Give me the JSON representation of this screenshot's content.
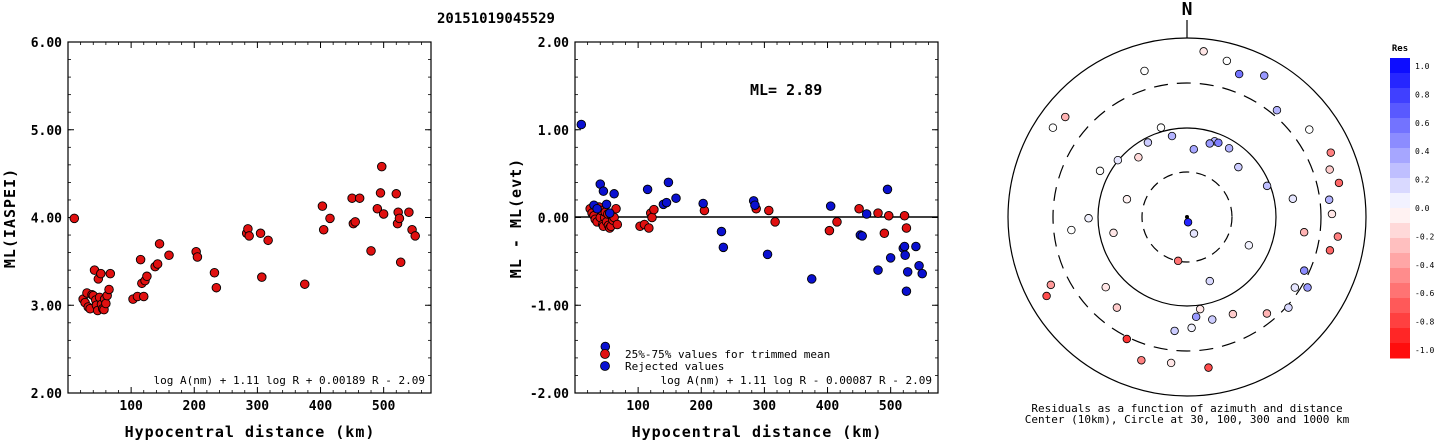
{
  "title": "20151019045529",
  "colors": {
    "accepted": "#e01010",
    "rejected": "#0a10d0",
    "ink": "#000000"
  },
  "chart_data": [
    {
      "type": "scatter",
      "xlabel": "Hypocentral distance (km)",
      "ylabel": "ML(IASPEI)",
      "xlim": [
        0,
        575
      ],
      "ylim": [
        2.0,
        6.0
      ],
      "xticks": [
        "100",
        "200",
        "300",
        "400",
        "500"
      ],
      "yticks": [
        "2.00",
        "3.00",
        "4.00",
        "5.00",
        "6.00"
      ],
      "formula": "log A(nm) + 1.11 log R + 0.00189 R - 2.09",
      "points": [
        [
          10,
          3.99
        ],
        [
          24,
          3.07
        ],
        [
          27,
          3.03
        ],
        [
          30,
          3.14
        ],
        [
          32,
          2.98
        ],
        [
          35,
          2.96
        ],
        [
          38,
          3.12
        ],
        [
          40,
          3.11
        ],
        [
          42,
          3.4
        ],
        [
          44,
          3.06
        ],
        [
          45,
          3.0
        ],
        [
          47,
          2.94
        ],
        [
          48,
          3.3
        ],
        [
          50,
          3.09
        ],
        [
          52,
          3.36
        ],
        [
          53,
          3.01
        ],
        [
          55,
          2.96
        ],
        [
          57,
          2.95
        ],
        [
          58,
          3.07
        ],
        [
          60,
          3.02
        ],
        [
          62,
          3.11
        ],
        [
          65,
          3.18
        ],
        [
          67,
          3.36
        ],
        [
          103,
          3.07
        ],
        [
          110,
          3.1
        ],
        [
          115,
          3.52
        ],
        [
          117,
          3.25
        ],
        [
          120,
          3.1
        ],
        [
          122,
          3.28
        ],
        [
          125,
          3.33
        ],
        [
          138,
          3.44
        ],
        [
          142,
          3.47
        ],
        [
          145,
          3.7
        ],
        [
          160,
          3.57
        ],
        [
          203,
          3.61
        ],
        [
          205,
          3.55
        ],
        [
          232,
          3.37
        ],
        [
          235,
          3.2
        ],
        [
          283,
          3.82
        ],
        [
          285,
          3.87
        ],
        [
          287,
          3.79
        ],
        [
          305,
          3.82
        ],
        [
          307,
          3.32
        ],
        [
          317,
          3.74
        ],
        [
          375,
          3.24
        ],
        [
          403,
          4.13
        ],
        [
          405,
          3.86
        ],
        [
          415,
          3.99
        ],
        [
          450,
          4.22
        ],
        [
          452,
          3.93
        ],
        [
          455,
          3.95
        ],
        [
          462,
          4.22
        ],
        [
          480,
          3.62
        ],
        [
          490,
          4.1
        ],
        [
          495,
          4.28
        ],
        [
          497,
          4.58
        ],
        [
          500,
          4.04
        ],
        [
          520,
          4.27
        ],
        [
          522,
          3.93
        ],
        [
          523,
          4.06
        ],
        [
          525,
          3.99
        ],
        [
          527,
          3.49
        ],
        [
          540,
          4.06
        ],
        [
          545,
          3.86
        ],
        [
          550,
          3.79
        ]
      ]
    },
    {
      "type": "scatter",
      "xlabel": "Hypocentral distance (km)",
      "ylabel": "ML - ML(evt)",
      "xlim": [
        0,
        575
      ],
      "ylim": [
        -2.0,
        2.0
      ],
      "xticks": [
        "100",
        "200",
        "300",
        "400",
        "500"
      ],
      "yticks": [
        "-2.00",
        "-1.00",
        "0.00",
        "1.00",
        "2.00"
      ],
      "summary": "ML= 2.89",
      "formula": "log A(nm) + 1.11 log R - 0.00087 R - 2.09",
      "legend": {
        "accepted": "25%-75% values for trimmed mean",
        "rejected": "Rejected values"
      },
      "series": [
        {
          "name": "25%-75% values for trimmed mean",
          "points": [
            [
              24,
              0.1
            ],
            [
              27,
              0.05
            ],
            [
              30,
              0.02
            ],
            [
              32,
              -0.02
            ],
            [
              35,
              -0.05
            ],
            [
              38,
              0.12
            ],
            [
              40,
              0.0
            ],
            [
              42,
              0.08
            ],
            [
              44,
              -0.08
            ],
            [
              45,
              -0.1
            ],
            [
              47,
              0.0
            ],
            [
              48,
              0.06
            ],
            [
              50,
              -0.05
            ],
            [
              52,
              0.04
            ],
            [
              53,
              -0.09
            ],
            [
              55,
              -0.12
            ],
            [
              57,
              -0.1
            ],
            [
              58,
              0.02
            ],
            [
              60,
              -0.03
            ],
            [
              62,
              0.0
            ],
            [
              65,
              0.1
            ],
            [
              67,
              -0.08
            ],
            [
              103,
              -0.1
            ],
            [
              110,
              -0.08
            ],
            [
              117,
              -0.12
            ],
            [
              120,
              0.05
            ],
            [
              122,
              0.0
            ],
            [
              125,
              0.09
            ],
            [
              205,
              0.08
            ],
            [
              287,
              0.1
            ],
            [
              307,
              0.08
            ],
            [
              317,
              -0.05
            ],
            [
              403,
              -0.15
            ],
            [
              415,
              -0.05
            ],
            [
              450,
              0.1
            ],
            [
              480,
              0.05
            ],
            [
              490,
              -0.18
            ],
            [
              497,
              0.02
            ],
            [
              522,
              0.02
            ],
            [
              525,
              -0.12
            ]
          ]
        },
        {
          "name": "Rejected values",
          "points": [
            [
              10,
              1.06
            ],
            [
              30,
              0.14
            ],
            [
              35,
              0.1
            ],
            [
              40,
              0.38
            ],
            [
              45,
              0.3
            ],
            [
              50,
              0.15
            ],
            [
              55,
              0.05
            ],
            [
              62,
              0.27
            ],
            [
              115,
              0.32
            ],
            [
              140,
              0.15
            ],
            [
              145,
              0.17
            ],
            [
              148,
              0.4
            ],
            [
              160,
              0.22
            ],
            [
              203,
              0.16
            ],
            [
              232,
              -0.16
            ],
            [
              235,
              -0.34
            ],
            [
              283,
              0.19
            ],
            [
              285,
              0.14
            ],
            [
              305,
              -0.42
            ],
            [
              375,
              -0.7
            ],
            [
              405,
              0.13
            ],
            [
              452,
              -0.2
            ],
            [
              455,
              -0.21
            ],
            [
              462,
              0.04
            ],
            [
              480,
              -0.6
            ],
            [
              495,
              0.32
            ],
            [
              500,
              -0.46
            ],
            [
              520,
              -0.35
            ],
            [
              522,
              -0.33
            ],
            [
              523,
              -0.43
            ],
            [
              527,
              -0.62
            ],
            [
              540,
              -0.33
            ],
            [
              545,
              -0.55
            ],
            [
              550,
              -0.64
            ],
            [
              525,
              -0.84
            ],
            [
              48,
              -1.47
            ]
          ]
        }
      ]
    },
    {
      "type": "polar_scatter",
      "north_label": "N",
      "caption_line1": "Residuals as a function of azimuth and distance",
      "caption_line2": "Center (10km), Circle at 30, 100, 300 and 1000 km",
      "colorbar": {
        "label": "Res",
        "ticks": [
          "1.0",
          "0.8",
          "0.6",
          "0.4",
          "0.2",
          "0.0",
          "-0.2",
          "-0.4",
          "-0.6",
          "-0.8",
          "-1.0"
        ]
      },
      "points": [
        [
          -0.2,
          -0.03,
          0.85
        ],
        [
          0.1,
          0.38,
          0.35
        ],
        [
          0.2,
          -0.25,
          -0.55
        ],
        [
          -0.4,
          -0.1,
          0.1
        ],
        [
          0.35,
          0.45,
          0.3
        ],
        [
          0.8,
          0.4,
          0.2
        ],
        [
          1.2,
          0.48,
          0.25
        ],
        [
          2.0,
          0.38,
          0.05
        ],
        [
          2.8,
          0.38,
          0.15
        ],
        [
          4.5,
          0.42,
          -0.1
        ],
        [
          5.0,
          0.35,
          -0.05
        ],
        [
          4.7,
          0.55,
          0.05
        ],
        [
          5.4,
          0.5,
          0.1
        ],
        [
          6.1,
          0.46,
          0.3
        ],
        [
          6.0,
          0.52,
          0.0
        ],
        [
          0.3,
          0.43,
          0.4
        ],
        [
          0.4,
          0.45,
          0.5
        ],
        [
          0.55,
          0.45,
          0.3
        ],
        [
          5.8,
          0.47,
          0.2
        ],
        [
          5.6,
          0.43,
          -0.15
        ],
        [
          1.4,
          0.6,
          0.1
        ],
        [
          1.7,
          0.66,
          -0.3
        ],
        [
          0.25,
          0.9,
          0.0
        ],
        [
          0.35,
          0.85,
          0.55
        ],
        [
          0.5,
          0.9,
          0.4
        ],
        [
          0.7,
          0.78,
          0.3
        ],
        [
          0.95,
          0.84,
          0.0
        ],
        [
          1.15,
          0.88,
          -0.5
        ],
        [
          1.25,
          0.84,
          -0.2
        ],
        [
          1.35,
          0.87,
          -0.6
        ],
        [
          1.45,
          0.8,
          0.3
        ],
        [
          1.55,
          0.81,
          -0.1
        ],
        [
          1.7,
          0.85,
          -0.5
        ],
        [
          1.8,
          0.82,
          -0.6
        ],
        [
          2.0,
          0.72,
          0.45
        ],
        [
          2.1,
          0.78,
          0.4
        ],
        [
          2.15,
          0.72,
          0.1
        ],
        [
          2.3,
          0.76,
          0.15
        ],
        [
          2.45,
          0.7,
          -0.3
        ],
        [
          2.7,
          0.6,
          -0.2
        ],
        [
          2.9,
          0.59,
          0.2
        ],
        [
          3.05,
          0.56,
          0.4
        ],
        [
          3.0,
          0.52,
          -0.1
        ],
        [
          3.1,
          0.62,
          0.05
        ],
        [
          3.25,
          0.82,
          -0.1
        ],
        [
          3.25,
          0.64,
          0.2
        ],
        [
          3.45,
          0.84,
          -0.5
        ],
        [
          3.0,
          0.85,
          -0.7
        ],
        [
          3.6,
          0.76,
          -0.8
        ],
        [
          3.8,
          0.64,
          -0.2
        ],
        [
          4.0,
          0.6,
          -0.1
        ],
        [
          4.25,
          0.85,
          -0.4
        ],
        [
          4.2,
          0.9,
          -0.7
        ],
        [
          4.6,
          0.65,
          0.0
        ],
        [
          5.2,
          0.55,
          0.0
        ],
        [
          5.3,
          0.9,
          0.0
        ],
        [
          5.4,
          0.88,
          -0.3
        ],
        [
          0.1,
          0.93,
          -0.1
        ],
        [
          6.0,
          0.85,
          0.0
        ]
      ]
    }
  ]
}
